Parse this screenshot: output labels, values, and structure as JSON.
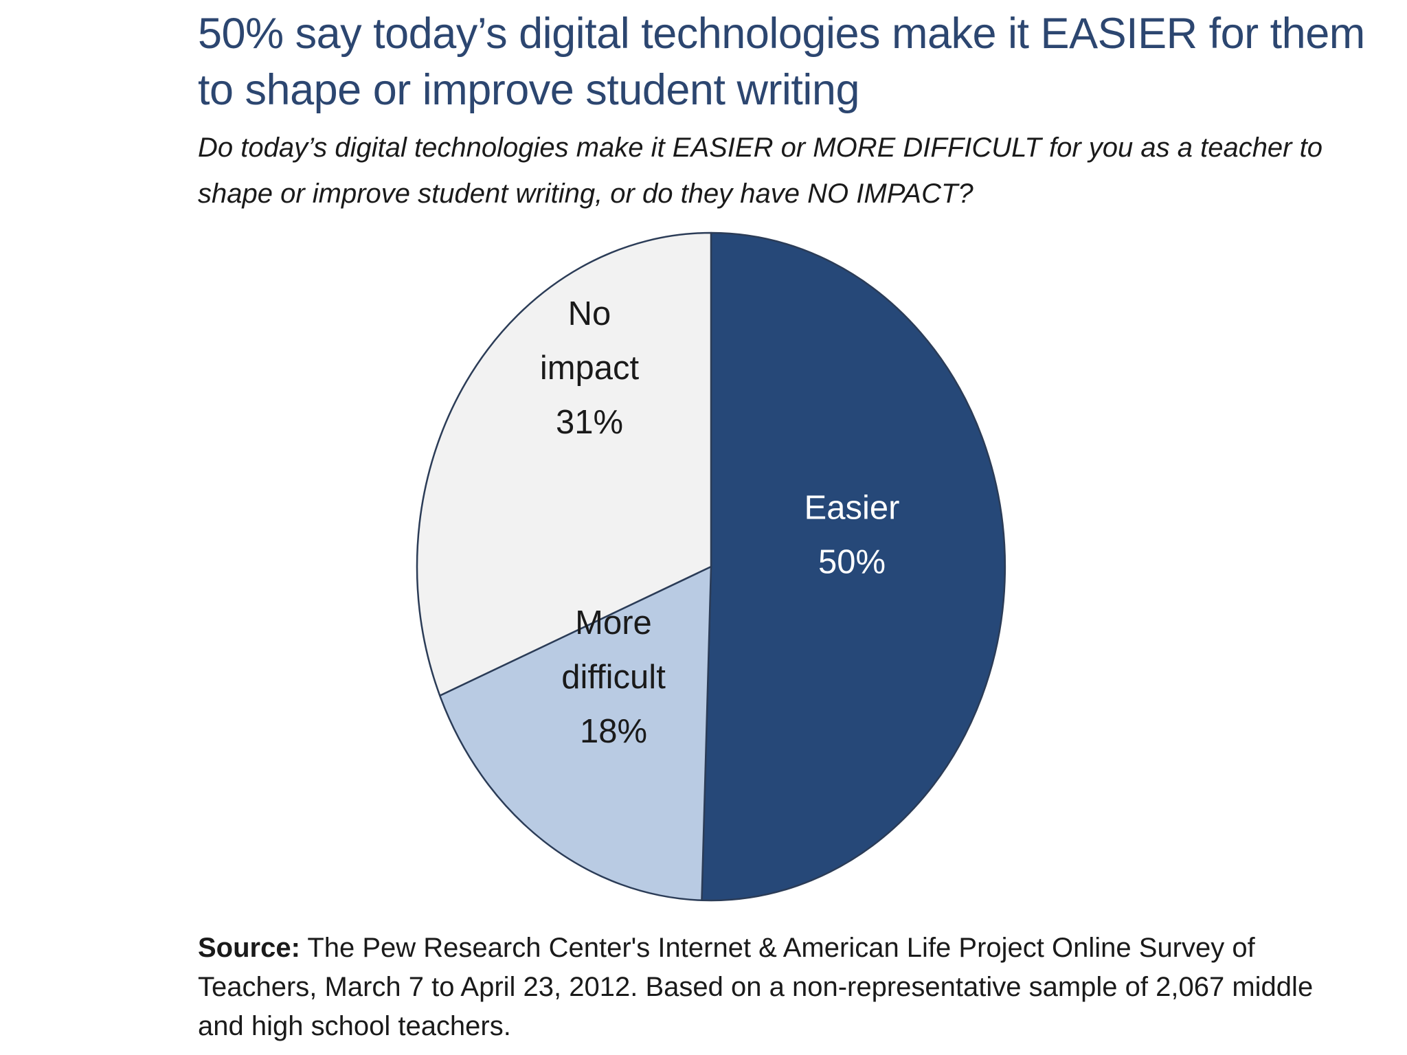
{
  "chart_data": {
    "type": "pie",
    "title": "50% say today’s digital technologies make it EASIER for them to shape or improve student writing",
    "subtitle": "Do today’s digital technologies make it EASIER or MORE DIFFICULT for you as a teacher to shape or improve student writing, or do they have NO IMPACT?",
    "slices": [
      {
        "label_lines": [
          "Easier"
        ],
        "value": 50,
        "value_label": "50%",
        "color": "#264878",
        "text_color": "#ffffff"
      },
      {
        "label_lines": [
          "More",
          "difficult"
        ],
        "value": 18,
        "value_label": "18%",
        "color": "#b9cbe3",
        "text_color": "#1a1a1a"
      },
      {
        "label_lines": [
          "No",
          "impact"
        ],
        "value": 31,
        "value_label": "31%",
        "color": "#f2f2f2",
        "text_color": "#1a1a1a"
      }
    ],
    "slice_border_color": "#2b3c57",
    "legend": "none"
  },
  "source": {
    "lead": "Source:",
    "text": " The Pew Research Center's Internet & American Life Project Online Survey of Teachers, March 7 to April 23, 2012.  Based on a non-representative sample of 2,067 middle and high school teachers."
  }
}
